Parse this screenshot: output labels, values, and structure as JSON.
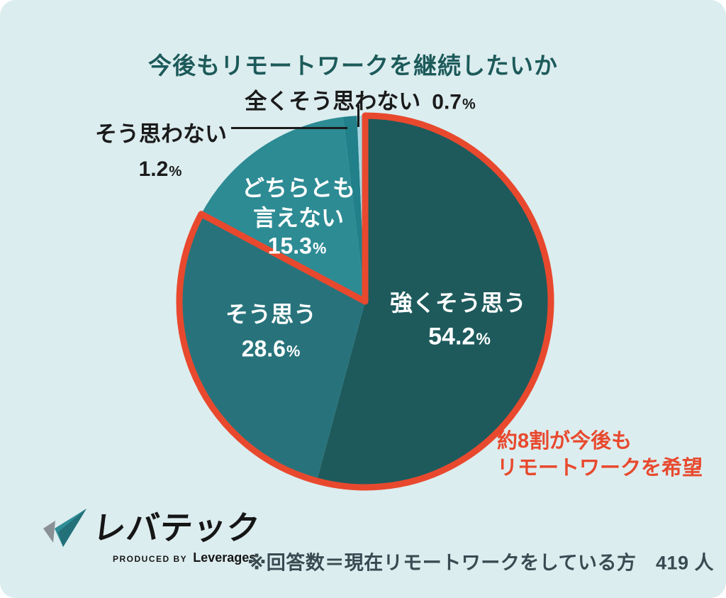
{
  "page": {
    "background_color": "#dcedef",
    "title": "今後もリモートワークを継続したいか",
    "title_color": "#1d5a5a"
  },
  "percent_sign": "%",
  "chart_data": {
    "type": "pie",
    "title": "今後もリモートワークを継続したいか",
    "unit": "%",
    "total": 100,
    "direction": "clockwise",
    "start_angle_deg": 0,
    "segments": [
      {
        "label": "強くそう思う",
        "value": 54.2,
        "color": "#1e5a5c",
        "text_color": "#ffffff"
      },
      {
        "label": "そう思う",
        "value": 28.6,
        "color": "#28737b",
        "text_color": "#ffffff"
      },
      {
        "label": "どちらとも言えない",
        "value": 15.3,
        "color": "#2d8b94",
        "text_color": "#ffffff"
      },
      {
        "label": "そう思わない",
        "value": 1.2,
        "color": "#21808a",
        "text_color": "#1b1b1b"
      },
      {
        "label": "全くそう思わない",
        "value": 0.7,
        "color": "#a8d6e2",
        "text_color": "#1b1b1b"
      }
    ],
    "segment_label_lines": {
      "dochira_line1": "どちらとも",
      "dochira_line2": "言えない"
    },
    "highlight": {
      "covers": [
        "強くそう思う",
        "そう思う"
      ],
      "combined_value": 82.8,
      "outline_color": "#e8492e"
    },
    "legend_position": "none",
    "grid": false
  },
  "callout": {
    "line1": "約8割が今後も",
    "line2": "リモートワークを希望",
    "color": "#e8492e"
  },
  "logo": {
    "brand": "レバテック",
    "produced_by": "PRODUCED BY",
    "company": "Leverages"
  },
  "footer": {
    "note": "※回答数＝現在リモートワークをしている方　419 人"
  }
}
